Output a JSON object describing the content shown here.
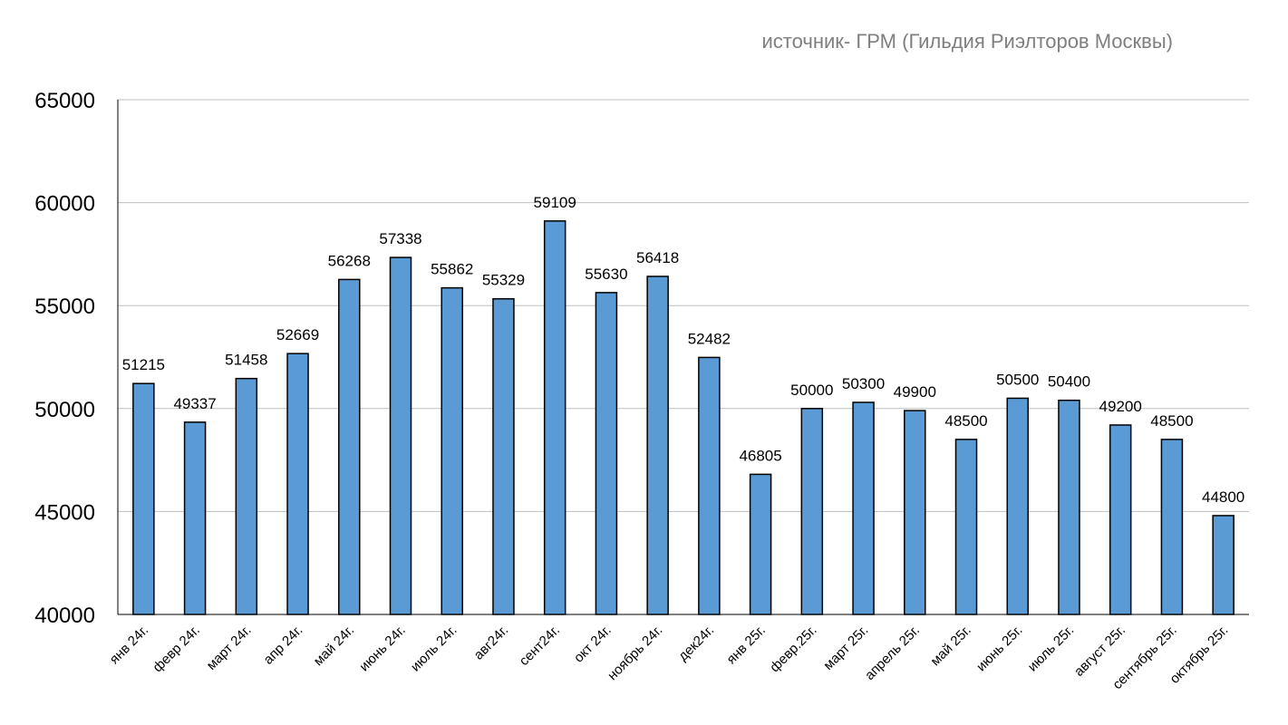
{
  "source_note": "источник- ГРМ (Гильдия Риэлторов Москвы)",
  "colors": {
    "bar_fill": "#5B9BD5",
    "bar_stroke": "#000000",
    "grid": "#bfbfbf",
    "source_text": "#7f7f7f"
  },
  "chart_data": {
    "type": "bar",
    "title": "",
    "xlabel": "",
    "ylabel": "",
    "ylim": [
      40000,
      65000
    ],
    "yticks": [
      40000,
      45000,
      50000,
      55000,
      60000,
      65000
    ],
    "grid": true,
    "categories": [
      "янв 24г.",
      "февр 24г.",
      "март 24г.",
      "апр 24г.",
      "май 24г.",
      "июнь 24г.",
      "июль 24г.",
      "авг24г.",
      "сент24г.",
      "окт 24г.",
      "ноябрь 24г.",
      "дек24г.",
      "янв 25г.",
      "февр.25г.",
      "март 25г.",
      "апрель 25г.",
      "май 25г.",
      "июнь 25г.",
      "июль 25г.",
      "август 25г.",
      "сентябрь 25г.",
      "октябрь 25г."
    ],
    "values": [
      51215,
      49337,
      51458,
      52669,
      56268,
      57338,
      55862,
      55329,
      59109,
      55630,
      56418,
      52482,
      46805,
      50000,
      50300,
      49900,
      48500,
      50500,
      50400,
      49200,
      48500,
      44800
    ]
  }
}
